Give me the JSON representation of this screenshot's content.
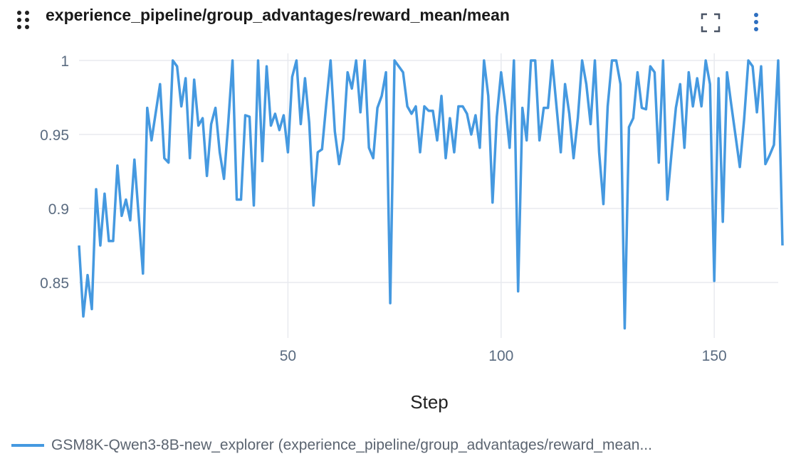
{
  "header": {
    "title": "experience_pipeline/group_advantages/reward_mean/mean",
    "icons": [
      "drag-handle-icon",
      "fullscreen-icon",
      "more-vertical-icon"
    ]
  },
  "colors": {
    "series": "#4599e0",
    "grid": "#e8eaef",
    "tick": "#5a6b80"
  },
  "chart_data": {
    "type": "line",
    "title": "experience_pipeline/group_advantages/reward_mean/mean",
    "xlabel": "Step",
    "ylabel": "",
    "xlim": [
      1,
      165
    ],
    "ylim": [
      0.8125,
      1.0
    ],
    "xticks": [
      50,
      100,
      150
    ],
    "yticks": [
      0.85,
      0.9,
      0.95,
      1
    ],
    "ytick_labels": [
      "0.85",
      "0.9",
      "0.95",
      "1"
    ],
    "xtick_labels": [
      "50",
      "100",
      "150"
    ],
    "grid": true,
    "legend_placement": "bottom",
    "series": [
      {
        "name": "GSM8K-Qwen3-8B-new_explorer (experience_pipeline/group_advantages/reward_mean...",
        "x_start": 1,
        "values": [
          0.875,
          0.827,
          0.855,
          0.832,
          0.913,
          0.875,
          0.91,
          0.878,
          0.878,
          0.929,
          0.895,
          0.906,
          0.892,
          0.933,
          0.895,
          0.856,
          0.968,
          0.946,
          0.965,
          0.984,
          0.934,
          0.931,
          1.0,
          0.996,
          0.969,
          0.988,
          0.934,
          0.987,
          0.956,
          0.961,
          0.922,
          0.957,
          0.968,
          0.938,
          0.92,
          0.958,
          1.0,
          0.906,
          0.906,
          0.963,
          0.962,
          0.902,
          1.0,
          0.932,
          0.996,
          0.956,
          0.964,
          0.953,
          0.963,
          0.938,
          0.989,
          1.0,
          0.957,
          0.988,
          0.958,
          0.902,
          0.938,
          0.94,
          0.971,
          1.0,
          0.952,
          0.93,
          0.947,
          0.992,
          0.981,
          1.0,
          0.965,
          1.0,
          0.941,
          0.934,
          0.968,
          0.976,
          0.992,
          0.836,
          1.0,
          0.996,
          0.992,
          0.969,
          0.964,
          0.969,
          0.938,
          0.969,
          0.966,
          0.966,
          0.946,
          0.976,
          0.934,
          0.961,
          0.938,
          0.969,
          0.969,
          0.964,
          0.95,
          0.963,
          0.941,
          1.0,
          0.976,
          0.904,
          0.962,
          0.992,
          0.969,
          0.941,
          1.0,
          0.844,
          0.968,
          0.946,
          1.0,
          1.0,
          0.946,
          0.968,
          0.968,
          1.0,
          0.969,
          0.938,
          0.984,
          0.964,
          0.934,
          0.961,
          1.0,
          0.984,
          0.957,
          1.0,
          0.938,
          0.903,
          0.969,
          1.0,
          1.0,
          0.984,
          0.819,
          0.955,
          0.961,
          0.992,
          0.968,
          0.967,
          0.996,
          0.992,
          0.931,
          1.0,
          0.906,
          0.938,
          0.968,
          0.984,
          0.941,
          0.992,
          0.969,
          0.988,
          0.969,
          1.0,
          0.984,
          0.851,
          0.988,
          0.891,
          0.992,
          0.97,
          0.949,
          0.928,
          0.96,
          1.0,
          0.996,
          0.965,
          0.996,
          0.93,
          0.936,
          0.943,
          1.0,
          0.875
        ]
      }
    ]
  }
}
